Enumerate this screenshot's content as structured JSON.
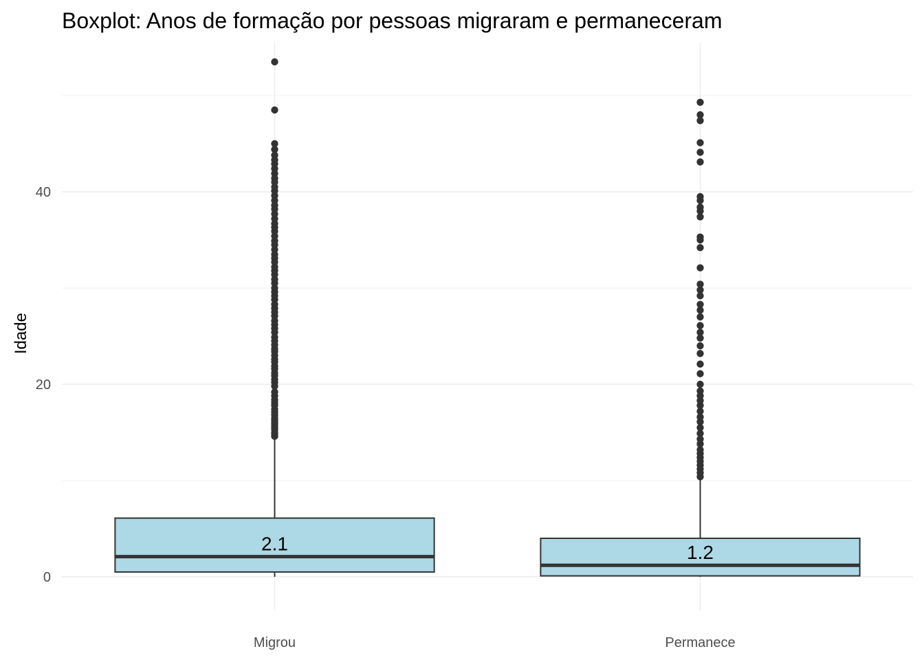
{
  "chart_data": {
    "type": "boxplot",
    "title": "Boxplot: Anos de formação por pessoas migraram e permaneceram",
    "xlabel": "",
    "ylabel": "Idade",
    "ylim": [
      -3.5,
      55.5
    ],
    "yticks": [
      0,
      20,
      40
    ],
    "grid": true,
    "legend": "none",
    "box_fill": "#add8e6",
    "line_color": "#333333",
    "categories": [
      "Migrou",
      "Permanece"
    ],
    "series": [
      {
        "category": "Migrou",
        "min": 0,
        "q1": 0.5,
        "median": 2.1,
        "q3": 6.1,
        "whisker_high": 14.3,
        "median_label": "2.1",
        "outliers": [
          14.6,
          14.8,
          15.0,
          15.3,
          15.5,
          15.7,
          15.9,
          16.1,
          16.3,
          16.5,
          16.8,
          17.1,
          17.4,
          17.8,
          18.1,
          18.4,
          18.8,
          19.2,
          19.8,
          20.2,
          20.5,
          20.9,
          21.2,
          21.6,
          21.9,
          22.3,
          22.6,
          23.0,
          23.4,
          23.7,
          24.1,
          24.5,
          24.9,
          25.4,
          25.8,
          26.2,
          26.6,
          27.1,
          27.5,
          27.9,
          28.3,
          28.8,
          29.2,
          29.6,
          30.0,
          30.5,
          30.9,
          31.4,
          31.8,
          32.2,
          32.7,
          33.1,
          33.5,
          34.0,
          34.5,
          34.9,
          35.4,
          35.9,
          36.3,
          36.7,
          37.2,
          37.7,
          38.2,
          38.6,
          39.1,
          39.6,
          40.1,
          40.5,
          41.0,
          41.4,
          41.9,
          42.4,
          42.9,
          43.3,
          43.8,
          44.4,
          45.0,
          48.5,
          53.5
        ]
      },
      {
        "category": "Permanece",
        "min": 0,
        "q1": 0.1,
        "median": 1.2,
        "q3": 4.0,
        "whisker_high": 10.2,
        "median_label": "1.2",
        "outliers": [
          10.4,
          10.8,
          11.2,
          11.6,
          12.0,
          12.4,
          12.8,
          13.2,
          13.8,
          14.3,
          14.9,
          15.5,
          16.1,
          16.6,
          17.2,
          17.8,
          18.3,
          18.8,
          19.3,
          20.0,
          21.1,
          22.1,
          23.2,
          24.0,
          24.8,
          25.4,
          26.1,
          27.0,
          27.7,
          28.3,
          29.2,
          29.8,
          30.4,
          32.1,
          34.2,
          35.0,
          35.3,
          37.4,
          38.0,
          38.4,
          39.1,
          39.5,
          43.1,
          44.1,
          45.1,
          47.4,
          48.0,
          49.3
        ]
      }
    ]
  }
}
